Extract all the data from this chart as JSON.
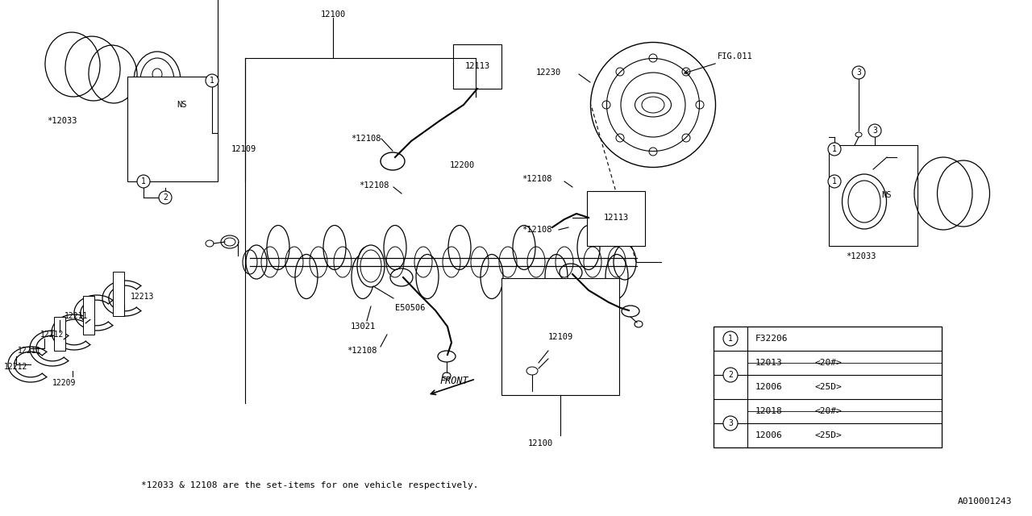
{
  "bg_color": "#ffffff",
  "line_color": "#000000",
  "font_color": "#000000",
  "footnote": "*12033 & 12108 are the set-items for one vehicle respectively.",
  "diagram_id": "A010001243",
  "fig_ref": "FIG.011",
  "parts_table": {
    "row1_circle": "1",
    "row1_p1": "F32206",
    "row2_circle": "2",
    "row2_p1": "12013",
    "row2_q1": "<20#>",
    "row2_p2": "12006",
    "row2_q2": "<25D>",
    "row3_circle": "3",
    "row3_p1": "12018",
    "row3_q1": "<20#>",
    "row3_p2": "12006",
    "row3_q2": "<25D>"
  }
}
